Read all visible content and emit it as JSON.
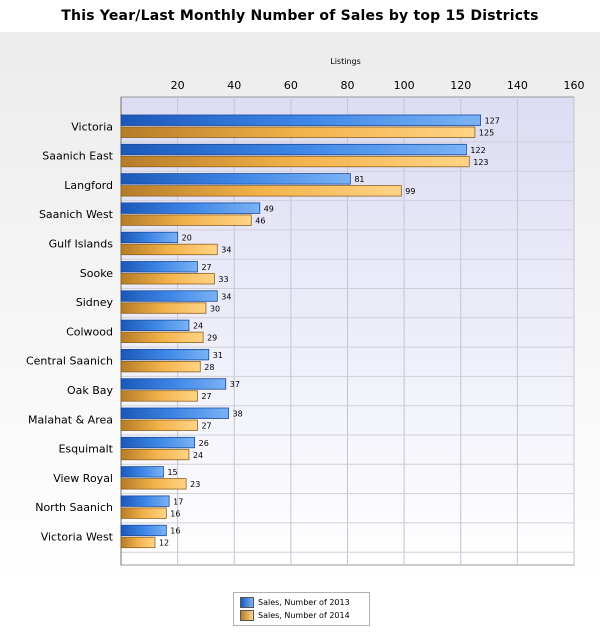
{
  "chart_data": {
    "type": "bar",
    "orientation": "horizontal",
    "title": "This Year/Last Monthly Number of Sales by top 15 Districts",
    "xlabel": "Listings",
    "ylabel": "",
    "xlim": [
      0,
      160
    ],
    "x_ticks": [
      "20",
      "40",
      "60",
      "80",
      "100",
      "120",
      "140",
      "160"
    ],
    "x_axis_position": "top",
    "grid": true,
    "legend_position": "bottom-center",
    "categories": [
      "Victoria",
      "Saanich East",
      "Langford",
      "Saanich West",
      "Gulf Islands",
      "Sooke",
      "Sidney",
      "Colwood",
      "Central Saanich",
      "Oak Bay",
      "Malahat & Area",
      "Esquimalt",
      "View Royal",
      "North Saanich",
      "Victoria West"
    ],
    "series": [
      {
        "name": "Sales, Number of 2013",
        "color": "#3d86e6",
        "values": [
          127,
          122,
          81,
          49,
          20,
          27,
          34,
          24,
          31,
          37,
          38,
          26,
          15,
          17,
          16
        ]
      },
      {
        "name": "Sales, Number of 2014",
        "color": "#f6b13e",
        "values": [
          125,
          123,
          99,
          46,
          34,
          33,
          30,
          29,
          28,
          27,
          27,
          24,
          23,
          16,
          12
        ]
      }
    ]
  }
}
